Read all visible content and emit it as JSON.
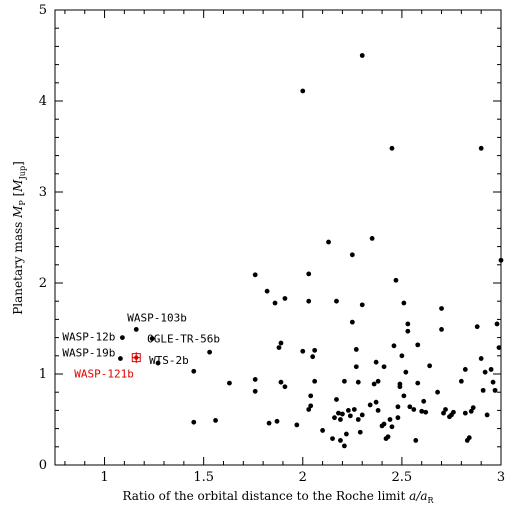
{
  "chart_data": {
    "type": "scatter",
    "title": "",
    "xlabel": "Ratio of the orbital distance to the Roche limit a/a_R",
    "ylabel": "Planetary mass M_p [M_Jup]",
    "xlabel_parts": {
      "text": "Ratio of the orbital distance to the Roche limit ",
      "var": "a/a",
      "sub": "R"
    },
    "ylabel_parts": {
      "text": "Planetary mass ",
      "var": "M",
      "sub": "P",
      "unit_open": " [",
      "unit": "M",
      "unit_sub": "Jup",
      "unit_close": "]"
    },
    "xlim": [
      0.75,
      3.0
    ],
    "ylim": [
      0,
      5
    ],
    "xticks": [
      1,
      1.5,
      2,
      2.5,
      3
    ],
    "yticks": [
      0,
      1,
      2,
      3,
      4,
      5
    ],
    "xtick_labels": [
      "1",
      "1.5",
      "2",
      "2.5",
      "3"
    ],
    "ytick_labels": [
      "0",
      "1",
      "2",
      "3",
      "4",
      "5"
    ],
    "grid": false,
    "legend": "none",
    "colors": {
      "points": "#000000",
      "highlight": "#e00000"
    },
    "annotations": [
      {
        "label": "WASP-103b",
        "x": 1.16,
        "y": 1.49,
        "color": "#000000"
      },
      {
        "label": "WASP-12b",
        "x": 1.09,
        "y": 1.4,
        "color": "#000000"
      },
      {
        "label": "OGLE-TR-56b",
        "x": 1.24,
        "y": 1.39,
        "color": "#000000"
      },
      {
        "label": "WASP-19b",
        "x": 1.08,
        "y": 1.17,
        "color": "#000000"
      },
      {
        "label": "WTS-2b",
        "x": 1.27,
        "y": 1.12,
        "color": "#000000"
      },
      {
        "label": "WASP-121b",
        "x": 1.16,
        "y": 1.18,
        "color": "#e00000"
      }
    ],
    "highlight_point": {
      "name": "WASP-121b",
      "x": 1.16,
      "y": 1.18,
      "xerr": 0.02,
      "yerr": 0.06
    },
    "series": [
      {
        "points": [
          [
            1.16,
            1.49
          ],
          [
            1.09,
            1.4
          ],
          [
            1.24,
            1.39
          ],
          [
            1.08,
            1.17
          ],
          [
            1.27,
            1.12
          ],
          [
            1.53,
            1.24
          ],
          [
            1.45,
            1.03
          ],
          [
            1.45,
            0.47
          ],
          [
            1.56,
            0.49
          ],
          [
            1.63,
            0.9
          ],
          [
            1.76,
            2.09
          ],
          [
            1.76,
            0.94
          ],
          [
            1.76,
            0.81
          ],
          [
            1.82,
            1.91
          ],
          [
            1.86,
            1.78
          ],
          [
            1.88,
            1.29
          ],
          [
            1.89,
            1.34
          ],
          [
            1.89,
            0.91
          ],
          [
            1.91,
            0.86
          ],
          [
            1.91,
            1.83
          ],
          [
            1.83,
            0.46
          ],
          [
            1.87,
            0.48
          ],
          [
            1.97,
            0.44
          ],
          [
            2.0,
            4.11
          ],
          [
            2.0,
            1.25
          ],
          [
            2.03,
            1.8
          ],
          [
            2.03,
            2.1
          ],
          [
            2.03,
            0.61
          ],
          [
            2.04,
            0.65
          ],
          [
            2.04,
            0.76
          ],
          [
            2.05,
            1.19
          ],
          [
            2.06,
            1.26
          ],
          [
            2.06,
            0.92
          ],
          [
            2.1,
            0.38
          ],
          [
            2.13,
            2.45
          ],
          [
            2.15,
            0.29
          ],
          [
            2.16,
            0.52
          ],
          [
            2.17,
            0.72
          ],
          [
            2.17,
            1.8
          ],
          [
            2.18,
            0.57
          ],
          [
            2.19,
            0.5
          ],
          [
            2.19,
            0.27
          ],
          [
            2.2,
            0.56
          ],
          [
            2.21,
            0.21
          ],
          [
            2.21,
            0.92
          ],
          [
            2.22,
            0.34
          ],
          [
            2.23,
            0.6
          ],
          [
            2.24,
            0.54
          ],
          [
            2.25,
            1.57
          ],
          [
            2.25,
            2.31
          ],
          [
            2.26,
            0.61
          ],
          [
            2.27,
            1.08
          ],
          [
            2.27,
            1.27
          ],
          [
            2.28,
            0.91
          ],
          [
            2.28,
            0.5
          ],
          [
            2.29,
            0.36
          ],
          [
            2.3,
            4.5
          ],
          [
            2.3,
            1.76
          ],
          [
            2.3,
            0.55
          ],
          [
            2.34,
            0.66
          ],
          [
            2.35,
            2.49
          ],
          [
            2.36,
            0.89
          ],
          [
            2.37,
            0.69
          ],
          [
            2.37,
            1.13
          ],
          [
            2.38,
            0.92
          ],
          [
            2.38,
            0.6
          ],
          [
            2.4,
            0.43
          ],
          [
            2.41,
            0.45
          ],
          [
            2.41,
            1.08
          ],
          [
            2.42,
            0.29
          ],
          [
            2.43,
            0.31
          ],
          [
            2.44,
            0.5
          ],
          [
            2.45,
            3.48
          ],
          [
            2.45,
            0.42
          ],
          [
            2.46,
            1.31
          ],
          [
            2.47,
            2.03
          ],
          [
            2.48,
            0.64
          ],
          [
            2.48,
            0.52
          ],
          [
            2.49,
            0.89
          ],
          [
            2.49,
            0.86
          ],
          [
            2.5,
            1.2
          ],
          [
            2.51,
            1.78
          ],
          [
            2.51,
            0.76
          ],
          [
            2.52,
            1.02
          ],
          [
            2.53,
            1.47
          ],
          [
            2.53,
            1.55
          ],
          [
            2.54,
            0.64
          ],
          [
            2.56,
            0.61
          ],
          [
            2.57,
            0.27
          ],
          [
            2.58,
            0.9
          ],
          [
            2.58,
            1.32
          ],
          [
            2.6,
            0.59
          ],
          [
            2.61,
            0.7
          ],
          [
            2.62,
            0.58
          ],
          [
            2.64,
            1.09
          ],
          [
            2.68,
            0.8
          ],
          [
            2.7,
            1.72
          ],
          [
            2.7,
            1.49
          ],
          [
            2.71,
            0.57
          ],
          [
            2.72,
            0.61
          ],
          [
            2.74,
            0.53
          ],
          [
            2.75,
            0.55
          ],
          [
            2.76,
            0.58
          ],
          [
            2.8,
            0.92
          ],
          [
            2.82,
            1.05
          ],
          [
            2.82,
            0.57
          ],
          [
            2.83,
            0.27
          ],
          [
            2.84,
            0.3
          ],
          [
            2.85,
            0.59
          ],
          [
            2.86,
            0.63
          ],
          [
            2.88,
            1.52
          ],
          [
            2.9,
            3.48
          ],
          [
            2.9,
            1.17
          ],
          [
            2.91,
            0.82
          ],
          [
            2.92,
            1.02
          ],
          [
            2.93,
            0.55
          ],
          [
            2.95,
            1.05
          ],
          [
            2.96,
            0.91
          ],
          [
            2.97,
            0.82
          ],
          [
            2.98,
            1.55
          ],
          [
            2.99,
            1.29
          ],
          [
            3.0,
            2.25
          ]
        ]
      }
    ]
  }
}
